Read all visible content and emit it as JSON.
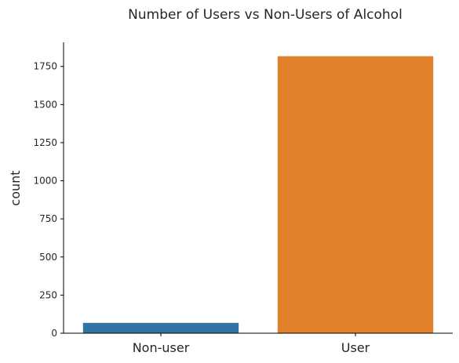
{
  "chart_data": {
    "type": "bar",
    "title": "Number of Users vs Non-Users of Alcohol",
    "xlabel": "",
    "ylabel": "count",
    "categories": [
      "Non-user",
      "User"
    ],
    "values": [
      68,
      1817
    ],
    "ylim": [
      0,
      1908
    ],
    "yticks": [
      0,
      250,
      500,
      750,
      1000,
      1250,
      1500,
      1750
    ],
    "bar_colors": [
      "#1f77b4",
      "#ff7f0e"
    ],
    "bar_fill_colors": [
      "#3274a1",
      "#e1812c"
    ],
    "grid": false,
    "spines": [
      "left",
      "bottom"
    ]
  }
}
